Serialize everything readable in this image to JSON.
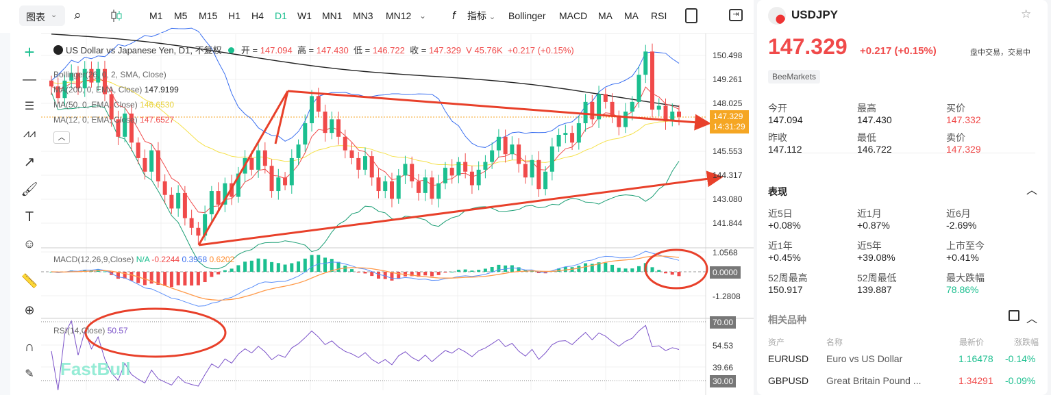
{
  "toolbar": {
    "chart_menu": "图表",
    "timeframes": [
      "M1",
      "M5",
      "M15",
      "H1",
      "H4",
      "D1",
      "W1",
      "MN1",
      "MN3",
      "MN12"
    ],
    "active_timeframe": "D1",
    "indicators_label": "指标",
    "indicator_shortcuts": [
      "Bollinger",
      "MACD",
      "MA",
      "MA",
      "RSI"
    ]
  },
  "legend": {
    "title": "US Dollar vs Japanese Yen, D1, 不复权",
    "open_label": "开 =",
    "open": "147.094",
    "high_label": "高 =",
    "high": "147.430",
    "low_label": "低 =",
    "low": "146.722",
    "close_label": "收 =",
    "close": "147.329",
    "volume": "V 45.76K",
    "change": "+0.217 (+0.15%)",
    "bollinger": "Bollinger(26, 0, 2, SMA, Close)",
    "ma200": "MA(200, 0, EMA, Close)",
    "ma200_val": "147.9199",
    "ma50": "MA(50, 0, EMA, Close)",
    "ma50_val": "146.6530",
    "ma12": "MA(12, 0, EMA, Close)",
    "ma12_val": "147.6527",
    "macd": "MACD(12,26,9,Close)",
    "macd_na": "N/A",
    "macd_hist": "-0.2244",
    "macd_line": "0.3958",
    "macd_signal": "0.6202",
    "rsi": "RSI(14,Close)",
    "rsi_val": "50.57"
  },
  "price_axis": [
    "150.498",
    "149.261",
    "148.025",
    "145.553",
    "144.317",
    "143.080",
    "141.844"
  ],
  "current_price_tag": {
    "price": "147.329",
    "countdown": "14:31:29"
  },
  "macd_axis": [
    "1.0568",
    "0.0000",
    "-1.2808"
  ],
  "rsi_axis": [
    "70.00",
    "54.53",
    "39.66",
    "30.00"
  ],
  "watermark": "FastBull",
  "colors": {
    "up": "#1bbf8f",
    "down": "#f04a4a",
    "ma200": "#222222",
    "ma50": "#f5e14a",
    "ma12": "#f04a4a",
    "bb": "#3a6ff0",
    "bbmid": "#1a9e74",
    "macd": "#5b8ff9",
    "signal": "#ff9a4a",
    "rsi": "#7b52c9",
    "annot": "#e8402a"
  },
  "chart_data": {
    "type": "candlestick",
    "symbol": "USDJPY",
    "timeframe": "D1",
    "ylim": [
      140.9,
      151.3
    ],
    "closes": [
      148.9,
      148.3,
      149.2,
      149.6,
      148.8,
      149.8,
      149.1,
      149.8,
      148.5,
      147.2,
      146.3,
      147.5,
      146.0,
      145.2,
      144.5,
      145.6,
      144.0,
      143.3,
      142.6,
      143.4,
      142.1,
      141.6,
      141.2,
      142.3,
      143.5,
      142.8,
      143.9,
      143.2,
      144.4,
      145.2,
      144.6,
      145.6,
      144.8,
      143.5,
      144.2,
      143.8,
      145.2,
      145.9,
      147.0,
      148.4,
      147.6,
      146.5,
      147.2,
      146.3,
      145.6,
      145.2,
      144.6,
      145.3,
      144.2,
      143.5,
      144.0,
      143.1,
      144.3,
      144.9,
      144.0,
      143.4,
      144.2,
      143.1,
      143.9,
      144.7,
      144.3,
      145.0,
      144.5,
      143.8,
      144.6,
      145.0,
      145.6,
      146.3,
      145.4,
      145.9,
      144.9,
      144.2,
      145.1,
      143.6,
      144.5,
      145.8,
      146.4,
      146.5,
      146.0,
      147.0,
      148.1,
      147.2,
      148.5,
      148.1,
      147.4,
      146.8,
      147.6,
      148.1,
      149.5,
      150.7,
      147.7,
      147.9,
      147.1,
      147.6,
      147.33
    ]
  },
  "panel": {
    "symbol": "USDJPY",
    "price": "147.329",
    "change": "+0.217",
    "change_pct": "(+0.15%)",
    "status": "盘中交易，交易中",
    "broker": "BeeMarkets",
    "quote": [
      {
        "label": "今开",
        "value": "147.094"
      },
      {
        "label": "最高",
        "value": "147.430"
      },
      {
        "label": "买价",
        "value": "147.332",
        "red": true
      },
      {
        "label": "昨收",
        "value": "147.112"
      },
      {
        "label": "最低",
        "value": "146.722"
      },
      {
        "label": "卖价",
        "value": "147.329",
        "red": true
      }
    ],
    "performance_title": "表现",
    "performance": [
      {
        "label": "近5日",
        "value": "+0.08%"
      },
      {
        "label": "近1月",
        "value": "+0.87%"
      },
      {
        "label": "近6月",
        "value": "-2.69%"
      },
      {
        "label": "近1年",
        "value": "+0.45%"
      },
      {
        "label": "近5年",
        "value": "+39.08%"
      },
      {
        "label": "上市至今",
        "value": "+0.41%"
      },
      {
        "label": "52周最高",
        "value": "150.917"
      },
      {
        "label": "52周最低",
        "value": "139.887"
      },
      {
        "label": "最大跌幅",
        "value": "78.86%",
        "green": true
      }
    ],
    "related_title": "相关品种",
    "related_headers": [
      "资产",
      "名称",
      "最新价",
      "涨跌幅"
    ],
    "related": [
      {
        "asset": "EURUSD",
        "name": "Euro vs US Dollar",
        "price": "1.16478",
        "price_color": "green",
        "change": "-0.14%"
      },
      {
        "asset": "GBPUSD",
        "name": "Great Britain Pound ...",
        "price": "1.34291",
        "price_color": "red",
        "change": "-0.09%"
      }
    ]
  }
}
